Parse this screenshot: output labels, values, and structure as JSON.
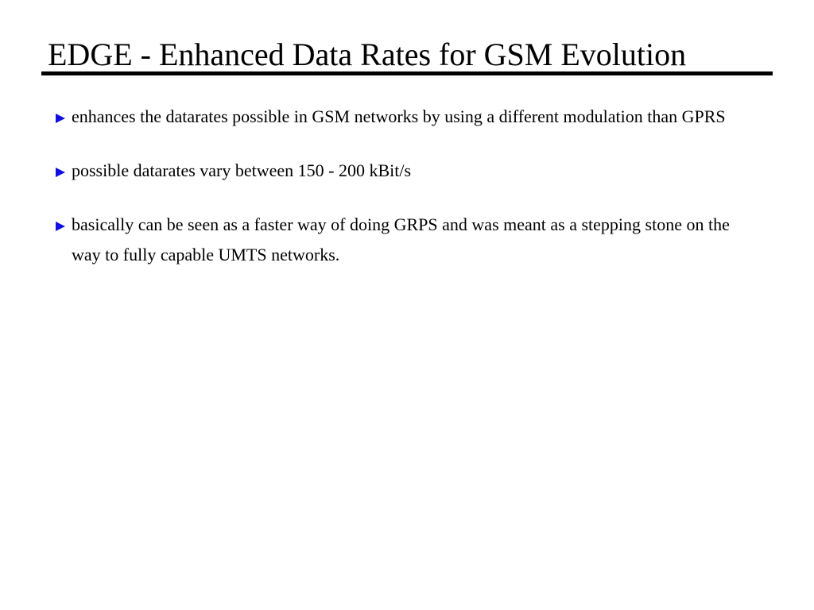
{
  "slide": {
    "title": "EDGE - Enhanced Data Rates for GSM Evolution",
    "bullet_color": "#1010e0",
    "bullets": [
      {
        "text": "enhances the datarates possible in GSM networks by using a different modulation than GPRS"
      },
      {
        "text": "possible datarates vary between 150 - 200 kBit/s"
      },
      {
        "text": "basically can be seen as a faster way of doing GRPS and was meant as a stepping stone on the way to fully capable UMTS networks."
      }
    ]
  }
}
